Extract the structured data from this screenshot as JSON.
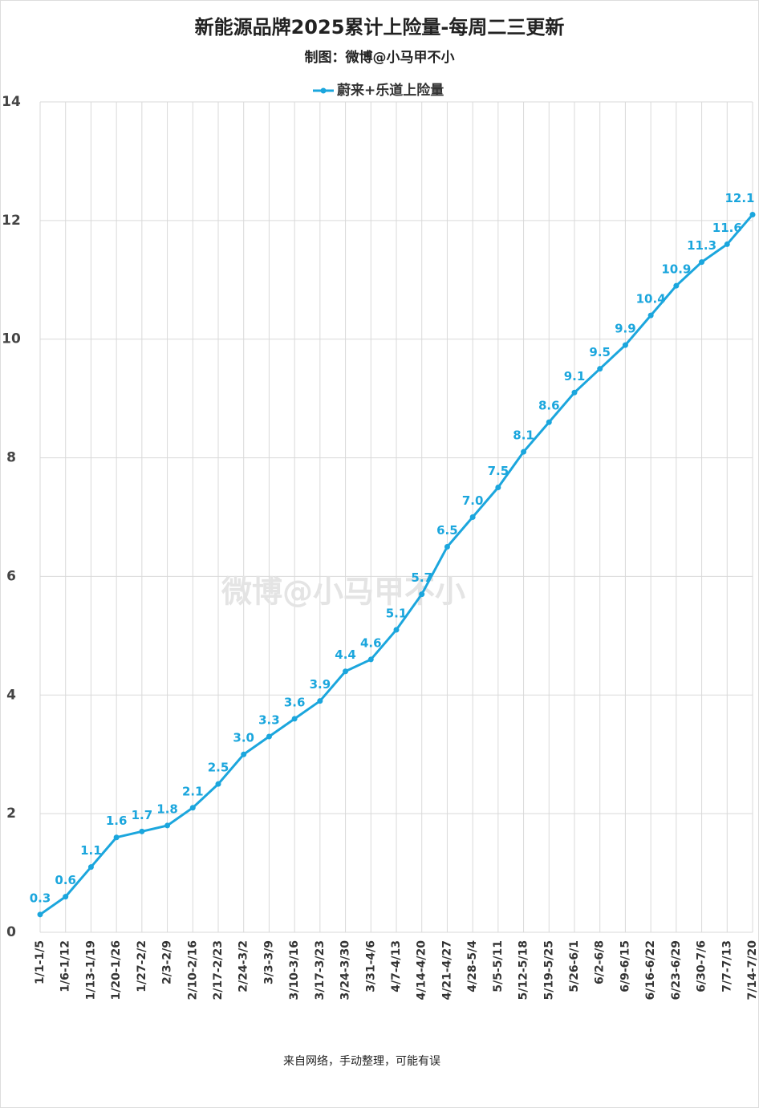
{
  "chart_data": {
    "type": "line",
    "title": "新能源品牌2025累计上险量-每周二三更新",
    "subtitle": "制图：微博@小马甲不小",
    "note": "来自网络，手动整理，可能有误",
    "watermark": "微博@小马甲不小",
    "categories": [
      "1/1-1/5",
      "1/6-1/12",
      "1/13-1/19",
      "1/20-1/26",
      "1/27-2/2",
      "2/3-2/9",
      "2/10-2/16",
      "2/17-2/23",
      "2/24-3/2",
      "3/3-3/9",
      "3/10-3/16",
      "3/17-3/23",
      "3/24-3/30",
      "3/31-4/6",
      "4/7-4/13",
      "4/14-4/20",
      "4/21-4/27",
      "4/28-5/4",
      "5/5-5/11",
      "5/12-5/18",
      "5/19-5/25",
      "5/26-6/1",
      "6/2-6/8",
      "6/9-6/15",
      "6/16-6/22",
      "6/23-6/29",
      "6/30-7/6",
      "7/7-7/13",
      "7/14-7/20"
    ],
    "series": [
      {
        "name": "蔚来+乐道上险量",
        "color": "#1ba6dd",
        "values": [
          0.3,
          0.6,
          1.1,
          1.6,
          1.7,
          1.8,
          2.1,
          2.5,
          3.0,
          3.3,
          3.6,
          3.9,
          4.4,
          4.6,
          5.1,
          5.7,
          6.5,
          7.0,
          7.5,
          8.1,
          8.6,
          9.1,
          9.5,
          9.9,
          10.4,
          10.9,
          11.3,
          11.6,
          12.1
        ],
        "value_labels": [
          "0.3",
          "0.6",
          "1.1",
          "1.6",
          "1.7",
          "1.8",
          "2.1",
          "2.5",
          "3.0",
          "3.3",
          "3.6",
          "3.9",
          "4.4",
          "4.6",
          "5.1",
          "5.7",
          "6.5",
          "7.0",
          "7.5",
          "8.1",
          "8.6",
          "9.1",
          "9.5",
          "9.9",
          "10.4",
          "10.9",
          "11.3",
          "11.6",
          "12.1"
        ]
      }
    ],
    "ylim": [
      0,
      14
    ],
    "yticks": [
      0,
      2,
      4,
      6,
      8,
      10,
      12,
      14
    ],
    "grid": true,
    "legend": "top"
  }
}
